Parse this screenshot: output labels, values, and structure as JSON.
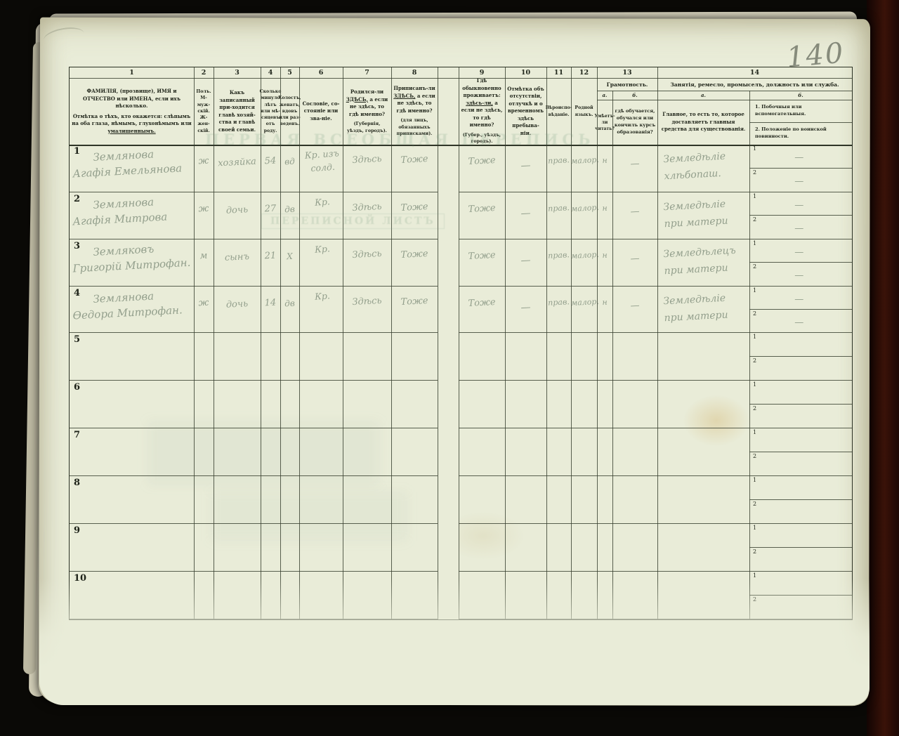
{
  "page": {
    "page_number": "140",
    "ghost1": "ПЕРВАЯ ВСЕОБЩАЯ ПЕРЕПИСЬ",
    "ghost2": "ПЕРЕПИСНОЙ ЛИСТЪ"
  },
  "table": {
    "numbers": [
      "1",
      "2",
      "3",
      "4",
      "5",
      "6",
      "7",
      "8",
      "9",
      "10",
      "11",
      "12",
      "13",
      "14"
    ],
    "h1a": "ФАМИЛІЯ, (прозвище), ИМЯ и ОТЧЕСТВО или ИМЕНА, если ихъ нѣсколько.",
    "h1b_pre": "Отмѣтка о тѣхъ, кто окажется: слѣпымъ на оба глаза, нѣмымъ, глухонѣмымъ или ",
    "h1b_u": "умалишеннымъ.",
    "h2": "Полъ. М-муж-скій. Ж-жен-скій.",
    "h3": "Какъ записанный при-ходится главѣ хозяй-ства и главѣ своей семьи.",
    "h4": "Сколько минуло лѣтъ или мѣ-сяцевъ отъ роду.",
    "h5": "Холостъ, женатъ, вдовъ или раз-веденъ.",
    "h6": "Сословіе, со-стояніе или зва-ніе.",
    "h7_pre": "Родился-ли ",
    "h7_emph": "ЗДѢСЬ,",
    "h7_post": " а если не здѣсь, то гдѣ именно?",
    "h7_note": "(Губернія, уѣздъ, городъ).",
    "h8_pre": "Приписанъ-ли ",
    "h8_emph": "ЗДѢСЬ,",
    "h8_post": " а если не здѣсь, то гдѣ именно?",
    "h8_note": "(для лицъ, обязанныхъ приписками).",
    "h9_pre": "Гдѣ обыкновенно проживаетъ: ",
    "h9_emph": "здѣсь-ли,",
    "h9_post": " а если не здѣсь, то гдѣ именно?",
    "h9_note": "(Губер., уѣздъ, городъ).",
    "h10": "Отмѣтка объ отсутствіи, отлучкѣ и о временномъ здѣсь пребыва-ніи.",
    "h11": "Вѣроиспо-вѣданіе.",
    "h12": "Родной языкъ.",
    "h13_title": "Грамотность.",
    "h13_a_label": "а.",
    "h13_b_label": "б.",
    "h13_a": "Умѣетъ-ли читать?",
    "h13_b": "гдѣ обучается, обучался или кончилъ курсъ образованія?",
    "h14_title": "Занятія, ремесло, промыселъ, должность или служба.",
    "h14_a_label": "а.",
    "h14_b_label": "б.",
    "h14_a": "Главное, то есть то, которое доставляетъ главныя средства для существованія.",
    "h14_b1": "1. Побочныя или вспомогательныя.",
    "h14_b2": "2. Положеніе по воинской повинности.",
    "side_labels": [
      "1",
      "2"
    ],
    "rows": [
      {
        "n": "1",
        "name1": "Землянова",
        "name2": "Агафія Емельянова",
        "sex": "ж",
        "rel": "хозяйка",
        "age": "54",
        "mar": "вд",
        "est1": "Кр. изъ",
        "est2": "солд.",
        "born": "Здѣсь",
        "reg": "Тоже",
        "res": "Тоже",
        "abs": "—",
        "faith": "прав.",
        "lang": "малор.",
        "lit": "н",
        "litb": "—",
        "occ1": "Земледѣліе",
        "occ2": "хлѣбопаш.",
        "s1": "—",
        "s2": "—"
      },
      {
        "n": "2",
        "name1": "Землянова",
        "name2": "Агафія Митрова",
        "sex": "ж",
        "rel": "дочь",
        "age": "27",
        "mar": "дв",
        "est1": "Кр.",
        "est2": "",
        "born": "Здѣсь",
        "reg": "Тоже",
        "res": "Тоже",
        "abs": "—",
        "faith": "прав.",
        "lang": "малор.",
        "lit": "н",
        "litb": "—",
        "occ1": "Земледѣліе",
        "occ2": "при матери",
        "s1": "—",
        "s2": "—"
      },
      {
        "n": "3",
        "name1": "Земляковъ",
        "name2": "Григорій Митрофан.",
        "sex": "м",
        "rel": "сынъ",
        "age": "21",
        "mar": "Х",
        "est1": "Кр.",
        "est2": "",
        "born": "Здѣсь",
        "reg": "Тоже",
        "res": "Тоже",
        "abs": "—",
        "faith": "прав.",
        "lang": "малор.",
        "lit": "н",
        "litb": "—",
        "occ1": "Земледѣлецъ",
        "occ2": "при матери",
        "s1": "—",
        "s2": "—"
      },
      {
        "n": "4",
        "name1": "Землянова",
        "name2": "Ѳедора Митрофан.",
        "sex": "ж",
        "rel": "дочь",
        "age": "14",
        "mar": "дв",
        "est1": "Кр.",
        "est2": "",
        "born": "Здѣсь",
        "reg": "Тоже",
        "res": "Тоже",
        "abs": "—",
        "faith": "прав.",
        "lang": "малор.",
        "lit": "н",
        "litb": "—",
        "occ1": "Земледѣліе",
        "occ2": "при матери",
        "s1": "—",
        "s2": "—"
      },
      {
        "n": "5"
      },
      {
        "n": "6"
      },
      {
        "n": "7"
      },
      {
        "n": "8"
      },
      {
        "n": "9"
      },
      {
        "n": "10"
      }
    ]
  }
}
